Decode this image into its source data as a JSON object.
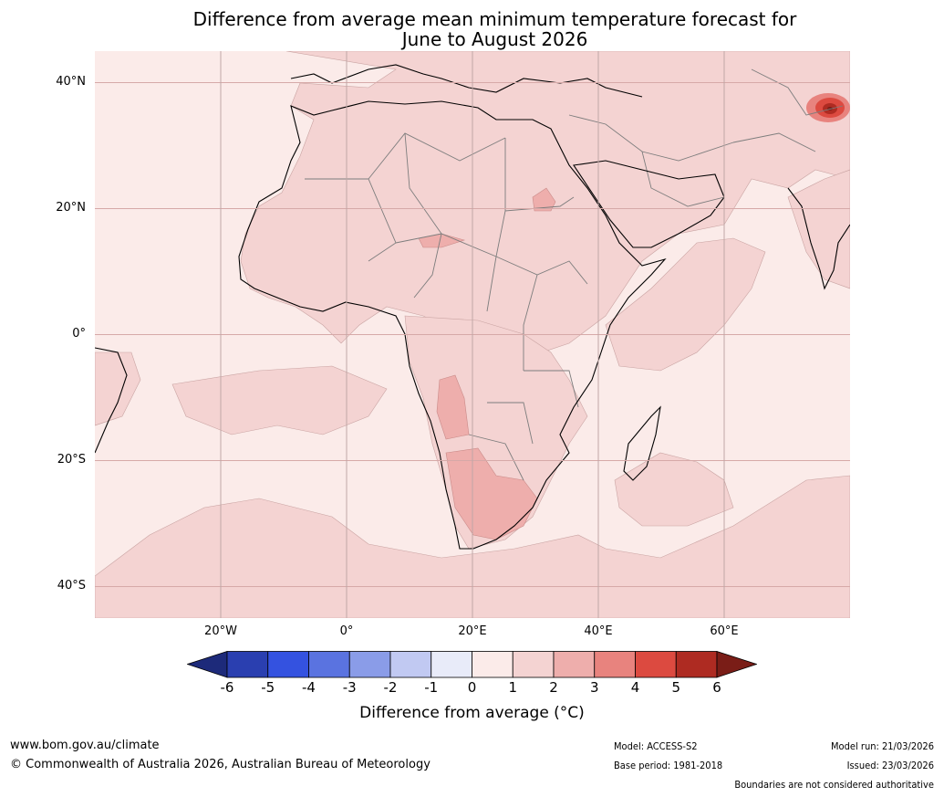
{
  "title": {
    "line1": "Difference from average mean minimum temperature forecast for",
    "line2": "June to August 2026"
  },
  "map": {
    "region": "Africa",
    "lat_labels": [
      "40°N",
      "20°N",
      "0°",
      "20°S",
      "40°S"
    ],
    "lon_labels": [
      "20°W",
      "0°",
      "20°E",
      "40°E",
      "60°E"
    ],
    "lat_ticks_deg": [
      40,
      20,
      0,
      -20,
      -40
    ],
    "lon_ticks_deg": [
      -20,
      0,
      20,
      40,
      60
    ],
    "extent_deg": {
      "lon_min": -40,
      "lon_max": 80,
      "lat_min": -45,
      "lat_max": 45
    }
  },
  "colorbar": {
    "ticks": [
      "-6",
      "-5",
      "-4",
      "-3",
      "-2",
      "-1",
      "0",
      "1",
      "2",
      "3",
      "4",
      "5",
      "6"
    ],
    "colors": [
      "#1d2a7a",
      "#2a3fb0",
      "#3452e0",
      "#5a73e0",
      "#8a9ce8",
      "#c1c9f2",
      "#e8ebf9",
      "#fbebe9",
      "#f4d3d2",
      "#eeaeac",
      "#e8837e",
      "#dc4a40",
      "#ae2b22",
      "#7a1d17"
    ],
    "title": "Difference from average (°C)"
  },
  "footer": {
    "website": "www.bom.gov.au/climate",
    "copyright": "© Commonwealth of Australia 2026, Australian Bureau of Meteorology",
    "model": "Model: ACCESS-S2",
    "base_period": "Base period: 1981-2018",
    "model_run": "Model run: 21/03/2026",
    "issued": "Issued: 23/03/2026",
    "disclaimer": "Boundaries are not considered authoritative"
  }
}
